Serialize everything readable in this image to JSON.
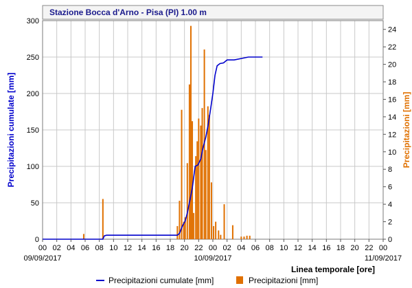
{
  "chart_data": {
    "type": "bar+line",
    "title": "Stazione Bocca d'Arno - Pisa (PI) 1.00 m",
    "ylabel_left": "Precipitazioni cumulate [mm]",
    "ylabel_right": "Precipitazioni [mm]",
    "xlabel": "Linea temporale [ore]",
    "ylim_left": [
      0,
      300
    ],
    "ylim_right": [
      0,
      25
    ],
    "yticks_left": [
      0,
      50,
      100,
      150,
      200,
      250,
      300
    ],
    "yticks_right": [
      0,
      2,
      4,
      6,
      8,
      10,
      12,
      14,
      16,
      18,
      20,
      22,
      24
    ],
    "xlim_hours": [
      0,
      48
    ],
    "xtick_labels": [
      "00",
      "02",
      "04",
      "06",
      "08",
      "10",
      "12",
      "14",
      "16",
      "18",
      "20",
      "22",
      "00",
      "02",
      "04",
      "06",
      "08",
      "10",
      "12",
      "14",
      "16",
      "18",
      "20",
      "22",
      "00"
    ],
    "date_labels": [
      {
        "hour": 0,
        "text": "09/09/2017"
      },
      {
        "hour": 24,
        "text": "10/09/2017"
      },
      {
        "hour": 48,
        "text": "11/09/2017"
      }
    ],
    "grid": true,
    "legend_position": "bottom",
    "series": [
      {
        "name": "Precipitazioni cumulate [mm]",
        "type": "line",
        "axis": "left",
        "color": "#0000cc",
        "points": [
          [
            0,
            0
          ],
          [
            6,
            0
          ],
          [
            8.5,
            0
          ],
          [
            8.7,
            4.5
          ],
          [
            9,
            5.5
          ],
          [
            12,
            5.5
          ],
          [
            15,
            5.5
          ],
          [
            18,
            5.5
          ],
          [
            19,
            5.5
          ],
          [
            19.3,
            8
          ],
          [
            19.7,
            18
          ],
          [
            20.1,
            25
          ],
          [
            20.4,
            36
          ],
          [
            20.8,
            55
          ],
          [
            21.1,
            70
          ],
          [
            21.5,
            100
          ],
          [
            21.9,
            102
          ],
          [
            22.3,
            110
          ],
          [
            22.6,
            125
          ],
          [
            23,
            140
          ],
          [
            23.3,
            155
          ],
          [
            23.7,
            180
          ],
          [
            24,
            200
          ],
          [
            24.3,
            225
          ],
          [
            24.6,
            238
          ],
          [
            25,
            241
          ],
          [
            25.5,
            242
          ],
          [
            26,
            246
          ],
          [
            27,
            246
          ],
          [
            28,
            248
          ],
          [
            29,
            250
          ],
          [
            30,
            250
          ],
          [
            31,
            250
          ]
        ]
      },
      {
        "name": "Precipitazioni [mm]",
        "type": "bar",
        "axis": "right",
        "color": "#e07000",
        "points": [
          [
            5.8,
            0.6
          ],
          [
            8.5,
            4.6
          ],
          [
            19.0,
            1.5
          ],
          [
            19.3,
            4.4
          ],
          [
            19.6,
            14.8
          ],
          [
            19.9,
            2.0
          ],
          [
            20.1,
            2.5
          ],
          [
            20.4,
            8.7
          ],
          [
            20.7,
            17.7
          ],
          [
            20.9,
            24.4
          ],
          [
            21.1,
            13.5
          ],
          [
            21.3,
            3.0
          ],
          [
            21.6,
            9.5
          ],
          [
            21.8,
            11.2
          ],
          [
            22.0,
            13.8
          ],
          [
            22.3,
            13.0
          ],
          [
            22.5,
            15.0
          ],
          [
            22.8,
            21.7
          ],
          [
            23.0,
            10.2
          ],
          [
            23.3,
            15.2
          ],
          [
            23.5,
            14.2
          ],
          [
            23.8,
            6.5
          ],
          [
            24.1,
            1.5
          ],
          [
            24.4,
            2.0
          ],
          [
            24.8,
            1.0
          ],
          [
            25.1,
            0.5
          ],
          [
            25.6,
            4.0
          ],
          [
            26.8,
            1.6
          ],
          [
            28.0,
            0.3
          ],
          [
            28.4,
            0.3
          ],
          [
            28.8,
            0.4
          ],
          [
            29.2,
            0.4
          ]
        ]
      }
    ]
  }
}
